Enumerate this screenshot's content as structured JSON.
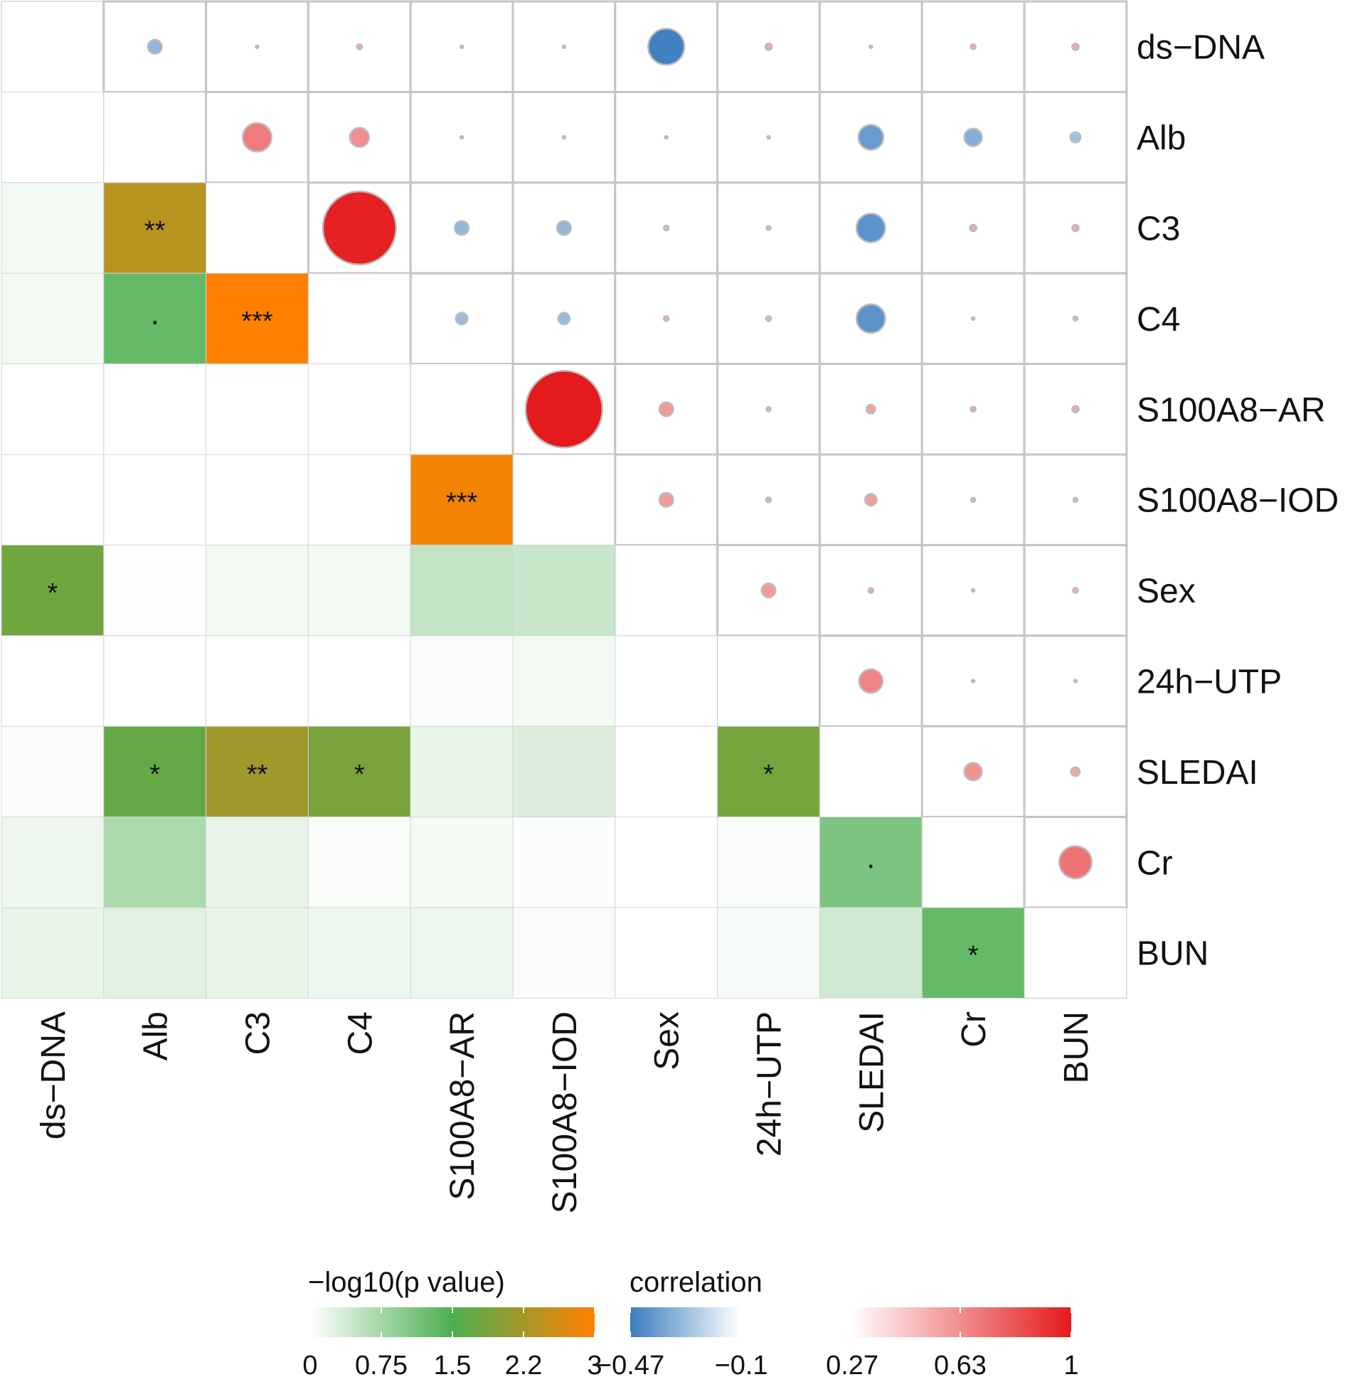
{
  "chart_data": {
    "type": "heatmap",
    "variables": [
      "ds−DNA",
      "Alb",
      "C3",
      "C4",
      "S100A8−AR",
      "S100A8−IOD",
      "Sex",
      "24h−UTP",
      "SLEDAI",
      "Cr",
      "BUN"
    ],
    "upper_triangle": "correlation (circle size and colour)",
    "lower_triangle": "−log10(p value) (tile colour) with significance symbols",
    "correlation_upper": [
      [
        null,
        -0.15,
        0.0,
        0.03,
        0.0,
        0.0,
        -0.45,
        0.05,
        0.0,
        0.03,
        0.05
      ],
      [
        null,
        null,
        0.35,
        0.22,
        0.0,
        0.0,
        0.0,
        0.0,
        -0.3,
        -0.2,
        -0.1
      ],
      [
        null,
        null,
        null,
        0.95,
        -0.15,
        -0.15,
        0.03,
        0.02,
        -0.35,
        0.05,
        0.05
      ],
      [
        null,
        null,
        null,
        null,
        -0.12,
        -0.12,
        0.03,
        0.03,
        -0.35,
        0.0,
        0.02
      ],
      [
        null,
        null,
        null,
        null,
        null,
        1.0,
        0.15,
        0.02,
        0.08,
        0.03,
        0.05
      ],
      [
        null,
        null,
        null,
        null,
        null,
        null,
        0.15,
        0.03,
        0.12,
        0.02,
        0.02
      ],
      [
        null,
        null,
        null,
        null,
        null,
        null,
        null,
        0.15,
        0.03,
        0.0,
        0.03
      ],
      [
        null,
        null,
        null,
        null,
        null,
        null,
        null,
        null,
        0.28,
        0.0,
        0.0
      ],
      [
        null,
        null,
        null,
        null,
        null,
        null,
        null,
        null,
        null,
        0.2,
        0.08
      ],
      [
        null,
        null,
        null,
        null,
        null,
        null,
        null,
        null,
        null,
        null,
        0.4
      ],
      [
        null,
        null,
        null,
        null,
        null,
        null,
        null,
        null,
        null,
        null,
        null
      ]
    ],
    "neglog10p_lower": [
      [
        null,
        null,
        null,
        null,
        null,
        null,
        null,
        null,
        null,
        null,
        null
      ],
      [
        0.0,
        null,
        null,
        null,
        null,
        null,
        null,
        null,
        null,
        null,
        null
      ],
      [
        0.1,
        2.4,
        null,
        null,
        null,
        null,
        null,
        null,
        null,
        null,
        null
      ],
      [
        0.1,
        1.3,
        3.0,
        null,
        null,
        null,
        null,
        null,
        null,
        null,
        null
      ],
      [
        0.0,
        0.0,
        0.0,
        0.0,
        null,
        null,
        null,
        null,
        null,
        null,
        null
      ],
      [
        0.0,
        0.0,
        0.0,
        0.0,
        2.9,
        null,
        null,
        null,
        null,
        null,
        null
      ],
      [
        1.8,
        0.02,
        0.1,
        0.1,
        0.5,
        0.45,
        null,
        null,
        null,
        null,
        null
      ],
      [
        0.0,
        0.0,
        0.0,
        0.0,
        0.05,
        0.1,
        0.0,
        null,
        null,
        null,
        null
      ],
      [
        0.05,
        1.7,
        2.2,
        1.9,
        0.2,
        0.3,
        0.0,
        1.85,
        null,
        null,
        null
      ],
      [
        0.15,
        0.7,
        0.2,
        0.05,
        0.1,
        0.03,
        0.0,
        0.05,
        1.1,
        null,
        null
      ],
      [
        0.2,
        0.25,
        0.2,
        0.15,
        0.15,
        0.05,
        0.0,
        0.08,
        0.4,
        1.3,
        null
      ]
    ],
    "significance_lower": [
      [
        null,
        null,
        null,
        null,
        null,
        null,
        null,
        null,
        null,
        null,
        null
      ],
      [
        "",
        null,
        null,
        null,
        null,
        null,
        null,
        null,
        null,
        null,
        null
      ],
      [
        "",
        "**",
        null,
        null,
        null,
        null,
        null,
        null,
        null,
        null,
        null
      ],
      [
        "",
        ".",
        "***",
        null,
        null,
        null,
        null,
        null,
        null,
        null,
        null
      ],
      [
        "",
        "",
        "",
        "",
        null,
        null,
        null,
        null,
        null,
        null,
        null
      ],
      [
        "",
        "",
        "",
        "",
        "***",
        null,
        null,
        null,
        null,
        null,
        null
      ],
      [
        "*",
        "",
        "",
        "",
        "",
        "",
        null,
        null,
        null,
        null,
        null
      ],
      [
        "",
        "",
        "",
        "",
        "",
        "",
        "",
        null,
        null,
        null,
        null
      ],
      [
        "",
        "*",
        "**",
        "*",
        "",
        "",
        "",
        "*",
        null,
        null,
        null
      ],
      [
        "",
        "",
        "",
        "",
        "",
        "",
        "",
        "",
        ".",
        null,
        null
      ],
      [
        "",
        "",
        "",
        "",
        "",
        "",
        "",
        "",
        "",
        "*",
        null
      ]
    ],
    "legend_p": {
      "title": "−log10(p value)",
      "ticks": [
        "0",
        "0.75",
        "1.5",
        "2.2",
        "3"
      ],
      "tick_values": [
        0,
        0.75,
        1.5,
        2.25,
        3
      ],
      "range": [
        0,
        3
      ],
      "colors": [
        "#ffffff",
        "#4caf50",
        "#ff8000"
      ]
    },
    "legend_corr": {
      "title": "correlation",
      "ticks": [
        "−0.47",
        "−0.1",
        "0.27",
        "0.63",
        "1"
      ],
      "tick_values": [
        -0.47,
        -0.1,
        0.27,
        0.63,
        1.0
      ],
      "range": [
        -0.47,
        1.0
      ],
      "colors": [
        "#3a7dbf",
        "#ffffff",
        "#e41a1c"
      ]
    }
  }
}
